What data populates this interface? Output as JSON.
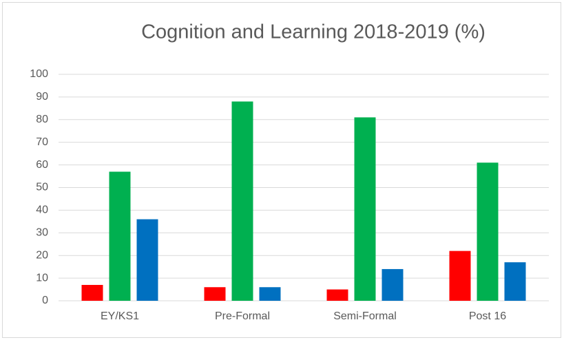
{
  "chart_data": {
    "type": "bar",
    "title": "Cognition and Learning 2018-2019 (%)",
    "categories": [
      "EY/KS1",
      "Pre-Formal",
      "Semi-Formal",
      "Post 16"
    ],
    "series": [
      {
        "color": "#ff0000",
        "values": [
          7,
          6,
          5,
          22
        ]
      },
      {
        "color": "#00b050",
        "values": [
          57,
          88,
          81,
          61
        ]
      },
      {
        "color": "#0070c0",
        "values": [
          36,
          6,
          14,
          17
        ]
      }
    ],
    "ylim": [
      0,
      100
    ],
    "yticks": [
      0,
      10,
      20,
      30,
      40,
      50,
      60,
      70,
      80,
      90,
      100
    ],
    "grid": true
  }
}
